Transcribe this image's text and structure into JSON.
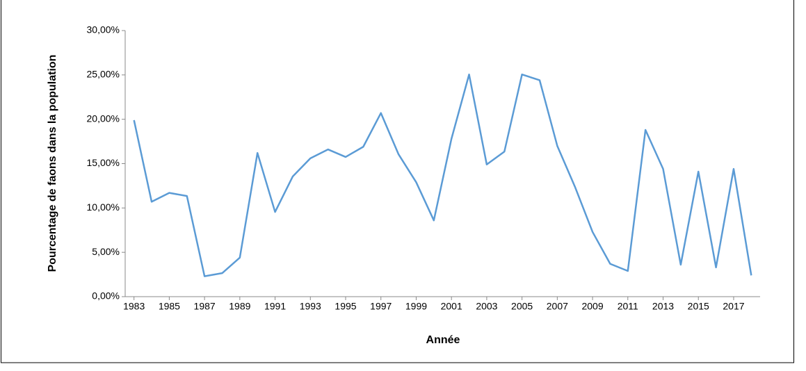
{
  "chart_data": {
    "type": "line",
    "x_label": "Année",
    "y_label": "Pourcentage de faons dans la population",
    "x": [
      1983,
      1984,
      1985,
      1986,
      1987,
      1988,
      1989,
      1990,
      1991,
      1992,
      1993,
      1994,
      1995,
      1996,
      1997,
      1998,
      1999,
      2000,
      2001,
      2002,
      2003,
      2004,
      2005,
      2006,
      2007,
      2008,
      2009,
      2010,
      2011,
      2012,
      2013,
      2014,
      2015,
      2016,
      2017,
      2018
    ],
    "series": [
      {
        "color": "#5b9bd5",
        "values": [
          19.9,
          10.7,
          11.7,
          11.35,
          2.3,
          2.65,
          4.4,
          16.2,
          9.55,
          13.55,
          15.6,
          16.6,
          15.75,
          16.9,
          20.7,
          16.05,
          12.9,
          8.6,
          17.8,
          25.05,
          14.9,
          16.35,
          25.05,
          24.4,
          17.0,
          12.4,
          7.3,
          3.7,
          2.9,
          18.8,
          14.4,
          3.6,
          14.1,
          3.3,
          14.4,
          2.4
        ]
      }
    ],
    "xlim": [
      1982.5,
      2018.5
    ],
    "xticks": [
      1983,
      1985,
      1987,
      1989,
      1991,
      1993,
      1995,
      1997,
      1999,
      2001,
      2003,
      2005,
      2007,
      2009,
      2011,
      2013,
      2015,
      2017
    ],
    "ylim": [
      0,
      30
    ],
    "yticks": [
      {
        "value": 0,
        "label": "0,00%"
      },
      {
        "value": 5,
        "label": "5,00%"
      },
      {
        "value": 10,
        "label": "10,00%"
      },
      {
        "value": 15,
        "label": "15,00%"
      },
      {
        "value": 20,
        "label": "20,00%"
      },
      {
        "value": 25,
        "label": "25,00%"
      },
      {
        "value": 30,
        "label": "30,00%"
      }
    ],
    "grid": false
  }
}
